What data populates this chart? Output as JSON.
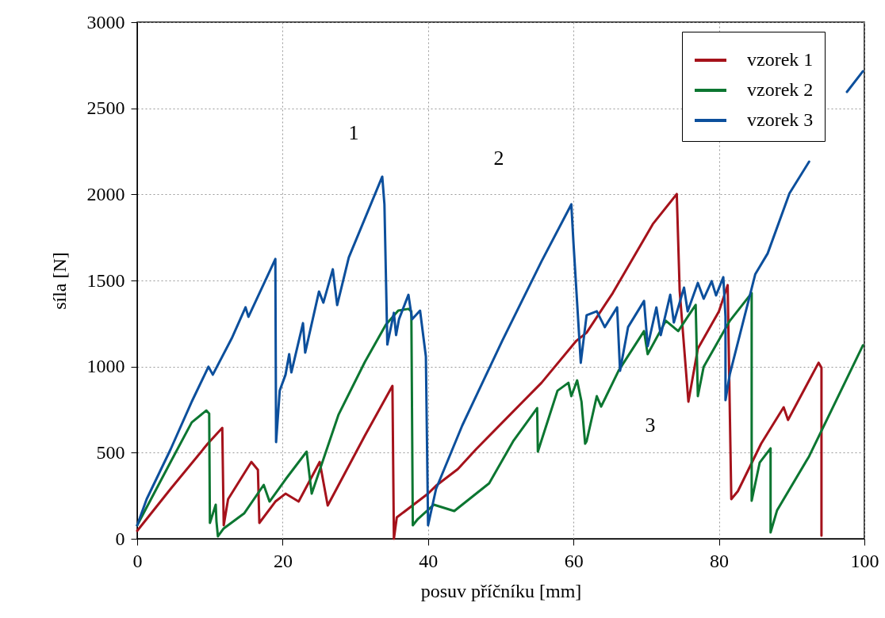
{
  "chart_data": {
    "type": "line",
    "xlabel": "posuv příčníku [mm]",
    "ylabel": "síla [N]",
    "xlim": [
      0,
      100
    ],
    "xticks": [
      0,
      20,
      40,
      60,
      80,
      100
    ],
    "ylim": [
      0,
      3000
    ],
    "yticks": [
      0,
      500,
      1000,
      1500,
      2000,
      2500,
      3000
    ],
    "grid": true,
    "legend": "top right",
    "line_style": "solid",
    "series": [
      {
        "name": "vzorek 1",
        "color": "#a5121b",
        "x": [
          0,
          4.6,
          9.7,
          11.7,
          11.9,
          12.5,
          15.7,
          16.6,
          16.8,
          19,
          20.4,
          22.2,
          25.1,
          26.2,
          31.3,
          35.1,
          35.3,
          35.7,
          40,
          41.1,
          44.1,
          46.6,
          51.3,
          55.6,
          60.4,
          61.8,
          65.4,
          70.9,
          74.2,
          74.6,
          75.8,
          77.1,
          80,
          81.2,
          81.7,
          82.6,
          85.8,
          88.9,
          89.5,
          93.7,
          94.1,
          94.1
        ],
        "values": [
          46,
          290,
          552,
          644,
          78,
          230,
          446,
          400,
          92,
          216,
          262,
          216,
          446,
          193,
          598,
          888,
          0,
          124,
          262,
          308,
          405,
          520,
          722,
          906,
          1150,
          1197,
          1427,
          1827,
          2002,
          1440,
          796,
          1104,
          1321,
          1473,
          230,
          276,
          552,
          764,
          690,
          1022,
          994,
          18
        ]
      },
      {
        "name": "vzorek 2",
        "color": "#0c7631",
        "x": [
          0,
          4.6,
          7.5,
          9.5,
          9.9,
          10,
          10.8,
          10.9,
          11.1,
          11.9,
          14.7,
          17.4,
          18.2,
          20.4,
          23.3,
          24,
          27.7,
          31.3,
          34.2,
          35.9,
          37.3,
          37.7,
          37.9,
          38.6,
          40.8,
          43.6,
          48.4,
          51.7,
          55,
          55.1,
          57.8,
          59.3,
          59.7,
          60.5,
          61.1,
          61.6,
          61.8,
          63.2,
          63.8,
          66.2,
          69.7,
          70.2,
          72.7,
          74.4,
          75.7,
          76.8,
          77.1,
          77.9,
          81.5,
          84.5,
          84.5,
          85.6,
          87.1,
          87.1,
          88,
          92.4,
          99.8
        ],
        "values": [
          78,
          446,
          676,
          745,
          727,
          92,
          198,
          101,
          14,
          60,
          147,
          313,
          216,
          345,
          506,
          262,
          722,
          1026,
          1243,
          1325,
          1335,
          1321,
          78,
          115,
          198,
          161,
          322,
          566,
          759,
          506,
          860,
          906,
          828,
          920,
          796,
          552,
          566,
          828,
          768,
          976,
          1206,
          1072,
          1266,
          1206,
          1289,
          1358,
          828,
          999,
          1266,
          1427,
          221,
          442,
          525,
          37,
          166,
          479,
          1123
        ]
      },
      {
        "name": "vzorek 3",
        "color": "#0c4f9c",
        "x": [
          0,
          1.3,
          4.6,
          7.5,
          9.8,
          10.4,
          13,
          14.9,
          15.3,
          19,
          19.1,
          19.6,
          20.4,
          20.9,
          21.2,
          22.8,
          23.1,
          25,
          25.6,
          26.9,
          27.5,
          29.1,
          33.7,
          34,
          34.4,
          35.3,
          35.6,
          36,
          37.3,
          37.8,
          38.9,
          39.7,
          40,
          41.1,
          44.7,
          50.2,
          55.6,
          59.7,
          60,
          61,
          61.8,
          63.2,
          64.3,
          66,
          66.4,
          67.5,
          69.7,
          70.2,
          71.4,
          72,
          73.3,
          73.8,
          75.2,
          75.7,
          77.1,
          77.9,
          79,
          79.6,
          80.6,
          80.9,
          80.9,
          81.5,
          85,
          86.7,
          89.7,
          92.4,
          95,
          97.6,
          99.8
        ],
        "values": [
          78,
          230,
          520,
          796,
          999,
          953,
          1164,
          1344,
          1289,
          1625,
          561,
          860,
          953,
          1072,
          966,
          1252,
          1081,
          1436,
          1371,
          1565,
          1357,
          1634,
          2103,
          1942,
          1128,
          1312,
          1183,
          1275,
          1417,
          1275,
          1325,
          1058,
          78,
          290,
          658,
          1150,
          1611,
          1942,
          1716,
          1022,
          1298,
          1321,
          1229,
          1344,
          976,
          1229,
          1381,
          1118,
          1344,
          1183,
          1417,
          1256,
          1459,
          1321,
          1486,
          1394,
          1496,
          1413,
          1519,
          1289,
          805,
          957,
          1537,
          1657,
          2006,
          2190,
          null,
          2595,
          2715
        ]
      }
    ],
    "annotations": [
      "1",
      "2",
      "3"
    ]
  }
}
